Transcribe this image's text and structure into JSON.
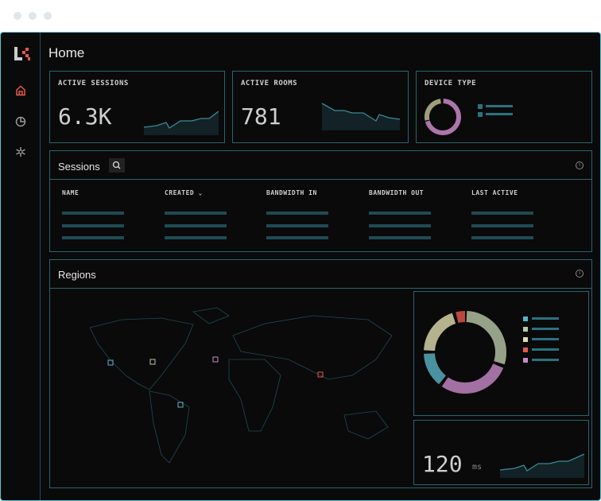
{
  "page": {
    "title": "Home"
  },
  "sidebar": {
    "items": [
      {
        "icon": "home-icon",
        "active": true
      },
      {
        "icon": "pie-chart-icon"
      },
      {
        "icon": "settings-icon"
      }
    ]
  },
  "cards": [
    {
      "label": "ACTIVE SESSIONS",
      "value": "6.3K",
      "trend": "up"
    },
    {
      "label": "ACTIVE ROOMS",
      "value": "781",
      "trend": "down"
    },
    {
      "label": "DEVICE TYPE"
    }
  ],
  "sessions": {
    "title": "Sessions",
    "columns": [
      "NAME",
      "CREATED",
      "BANDWIDTH IN",
      "BANDWIDTH OUT",
      "LAST ACTIVE"
    ],
    "sorted_column": "CREATED"
  },
  "regions": {
    "title": "Regions",
    "latency_value": "120",
    "latency_unit": "ms"
  },
  "colors": {
    "accent": "#e8574a",
    "border": "#2a6470",
    "teal": "#5ab4c8",
    "sage": "#b8c8a8",
    "cream": "#e0dcb0",
    "red": "#e8574a",
    "pink": "#c98ac8"
  }
}
